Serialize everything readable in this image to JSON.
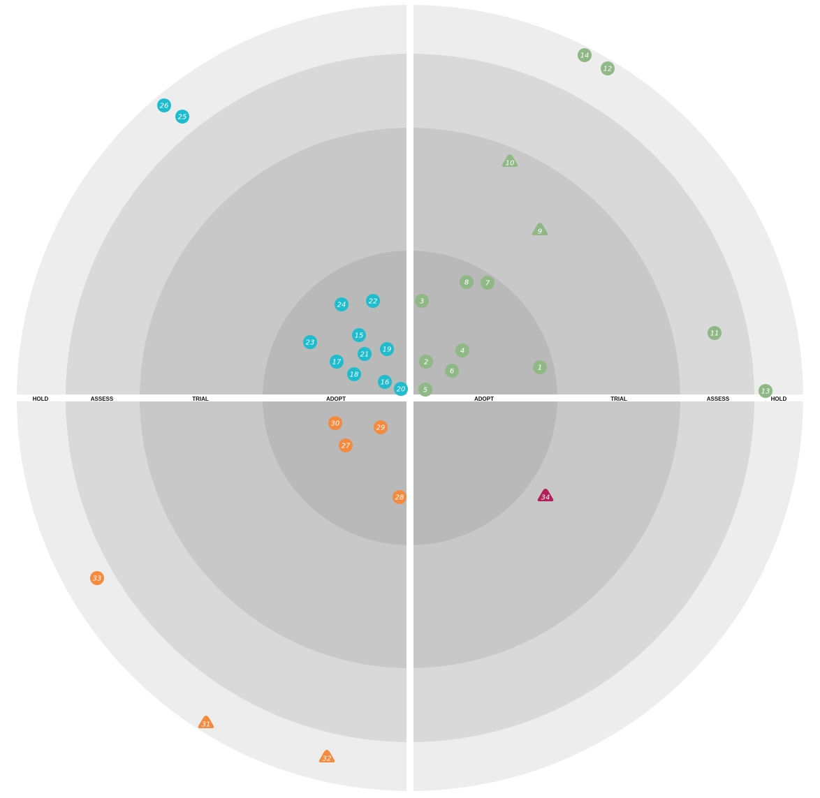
{
  "rings": [
    "ADOPT",
    "TRIAL",
    "ASSESS",
    "HOLD"
  ],
  "ring_colors": [
    "#b9b9b9",
    "#c8c8c8",
    "#d9d9d9",
    "#ededed"
  ],
  "quadrant_colors": {
    "top-right": "#8fb886",
    "top-left": "#1ebccd",
    "bottom-left": "#f38a3e",
    "bottom-right": "#b32059"
  },
  "blips": [
    {
      "num": "1",
      "quadrant": "top-right",
      "ring": "ADOPT",
      "shape": "circle"
    },
    {
      "num": "2",
      "quadrant": "top-right",
      "ring": "ADOPT",
      "shape": "circle"
    },
    {
      "num": "3",
      "quadrant": "top-right",
      "ring": "ADOPT",
      "shape": "circle"
    },
    {
      "num": "4",
      "quadrant": "top-right",
      "ring": "ADOPT",
      "shape": "circle"
    },
    {
      "num": "5",
      "quadrant": "top-right",
      "ring": "ADOPT",
      "shape": "circle"
    },
    {
      "num": "6",
      "quadrant": "top-right",
      "ring": "ADOPT",
      "shape": "circle"
    },
    {
      "num": "7",
      "quadrant": "top-right",
      "ring": "ADOPT",
      "shape": "circle"
    },
    {
      "num": "8",
      "quadrant": "top-right",
      "ring": "ADOPT",
      "shape": "circle"
    },
    {
      "num": "9",
      "quadrant": "top-right",
      "ring": "TRIAL",
      "shape": "triangle"
    },
    {
      "num": "10",
      "quadrant": "top-right",
      "ring": "TRIAL",
      "shape": "triangle"
    },
    {
      "num": "11",
      "quadrant": "top-right",
      "ring": "ASSESS",
      "shape": "circle"
    },
    {
      "num": "12",
      "quadrant": "top-right",
      "ring": "HOLD",
      "shape": "circle"
    },
    {
      "num": "13",
      "quadrant": "top-right",
      "ring": "HOLD",
      "shape": "circle"
    },
    {
      "num": "14",
      "quadrant": "top-right",
      "ring": "HOLD",
      "shape": "circle"
    },
    {
      "num": "15",
      "quadrant": "top-left",
      "ring": "ADOPT",
      "shape": "circle"
    },
    {
      "num": "16",
      "quadrant": "top-left",
      "ring": "ADOPT",
      "shape": "circle"
    },
    {
      "num": "17",
      "quadrant": "top-left",
      "ring": "ADOPT",
      "shape": "circle"
    },
    {
      "num": "18",
      "quadrant": "top-left",
      "ring": "ADOPT",
      "shape": "circle"
    },
    {
      "num": "19",
      "quadrant": "top-left",
      "ring": "ADOPT",
      "shape": "circle"
    },
    {
      "num": "20",
      "quadrant": "top-left",
      "ring": "ADOPT",
      "shape": "circle"
    },
    {
      "num": "21",
      "quadrant": "top-left",
      "ring": "ADOPT",
      "shape": "circle"
    },
    {
      "num": "22",
      "quadrant": "top-left",
      "ring": "ADOPT",
      "shape": "circle"
    },
    {
      "num": "23",
      "quadrant": "top-left",
      "ring": "ADOPT",
      "shape": "circle"
    },
    {
      "num": "24",
      "quadrant": "top-left",
      "ring": "ADOPT",
      "shape": "circle"
    },
    {
      "num": "25",
      "quadrant": "top-left",
      "ring": "HOLD",
      "shape": "circle"
    },
    {
      "num": "26",
      "quadrant": "top-left",
      "ring": "HOLD",
      "shape": "circle"
    },
    {
      "num": "27",
      "quadrant": "bottom-left",
      "ring": "ADOPT",
      "shape": "circle"
    },
    {
      "num": "28",
      "quadrant": "bottom-left",
      "ring": "ADOPT",
      "shape": "circle"
    },
    {
      "num": "29",
      "quadrant": "bottom-left",
      "ring": "ADOPT",
      "shape": "circle"
    },
    {
      "num": "30",
      "quadrant": "bottom-left",
      "ring": "ADOPT",
      "shape": "circle"
    },
    {
      "num": "31",
      "quadrant": "bottom-left",
      "ring": "HOLD",
      "shape": "triangle"
    },
    {
      "num": "32",
      "quadrant": "bottom-left",
      "ring": "HOLD",
      "shape": "triangle"
    },
    {
      "num": "33",
      "quadrant": "bottom-left",
      "ring": "HOLD",
      "shape": "circle"
    },
    {
      "num": "34",
      "quadrant": "bottom-right",
      "ring": "TRIAL",
      "shape": "triangle"
    }
  ]
}
